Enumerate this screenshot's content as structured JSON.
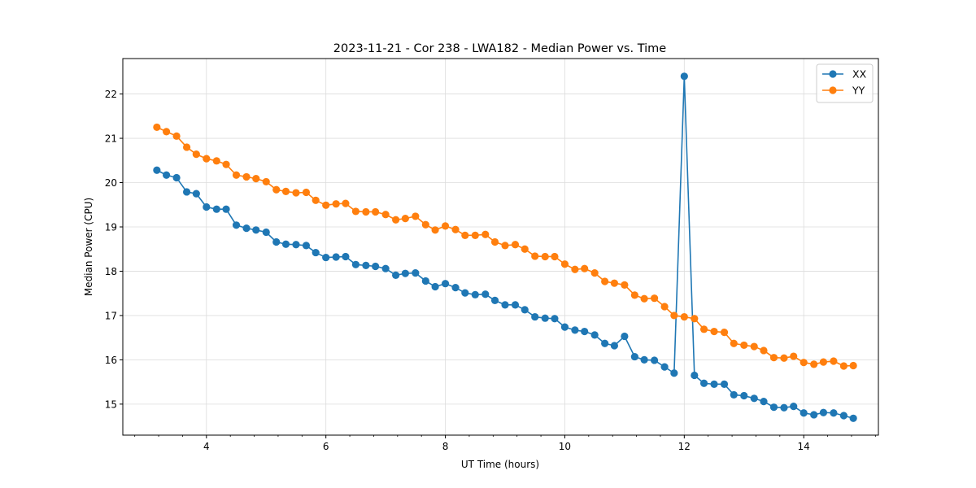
{
  "chart_data": {
    "type": "line",
    "title": "2023-11-21 - Cor 238 - LWA182 - Median Power vs. Time",
    "xlabel": "UT Time (hours)",
    "ylabel": "Median Power (CPU)",
    "xlim": [
      2.6,
      15.25
    ],
    "ylim": [
      14.3,
      22.8
    ],
    "xticks": [
      4,
      6,
      8,
      10,
      12,
      14
    ],
    "yticks": [
      15,
      16,
      17,
      18,
      19,
      20,
      21,
      22
    ],
    "grid": true,
    "legend_position": "top-right",
    "x": [
      3.17,
      3.33,
      3.5,
      3.67,
      3.83,
      4.0,
      4.17,
      4.33,
      4.5,
      4.67,
      4.83,
      5.0,
      5.17,
      5.33,
      5.5,
      5.67,
      5.83,
      6.0,
      6.17,
      6.33,
      6.5,
      6.67,
      6.83,
      7.0,
      7.17,
      7.33,
      7.5,
      7.67,
      7.83,
      8.0,
      8.17,
      8.33,
      8.5,
      8.67,
      8.83,
      9.0,
      9.17,
      9.33,
      9.5,
      9.67,
      9.83,
      10.0,
      10.17,
      10.33,
      10.5,
      10.67,
      10.83,
      11.0,
      11.17,
      11.33,
      11.5,
      11.67,
      11.83,
      12.0,
      12.17,
      12.33,
      12.5,
      12.67,
      12.83,
      13.0,
      13.17,
      13.33,
      13.5,
      13.67,
      13.83,
      14.0,
      14.17,
      14.33,
      14.5,
      14.67,
      14.83
    ],
    "series": [
      {
        "name": "XX",
        "color": "#1f77b4",
        "values": [
          20.28,
          20.17,
          20.11,
          19.79,
          19.75,
          19.45,
          19.4,
          19.4,
          19.04,
          18.97,
          18.93,
          18.88,
          18.66,
          18.61,
          18.6,
          18.58,
          18.42,
          18.31,
          18.32,
          18.33,
          18.15,
          18.13,
          18.11,
          18.06,
          17.91,
          17.95,
          17.96,
          17.78,
          17.65,
          17.72,
          17.63,
          17.51,
          17.47,
          17.48,
          17.34,
          17.24,
          17.24,
          17.13,
          16.97,
          16.94,
          16.93,
          16.74,
          16.67,
          16.64,
          16.56,
          16.37,
          16.32,
          16.53,
          16.07,
          16.0,
          15.99,
          15.84,
          15.7,
          22.4,
          15.65,
          15.47,
          15.45,
          15.45,
          15.21,
          15.19,
          15.13,
          15.06,
          14.93,
          14.92,
          14.95,
          14.8,
          14.76,
          14.81,
          14.8,
          14.74,
          14.68
        ]
      },
      {
        "name": "YY",
        "color": "#ff7f0e",
        "values": [
          21.25,
          21.15,
          21.05,
          20.8,
          20.64,
          20.54,
          20.49,
          20.41,
          20.17,
          20.13,
          20.09,
          20.02,
          19.84,
          19.8,
          19.77,
          19.78,
          19.6,
          19.49,
          19.52,
          19.53,
          19.35,
          19.34,
          19.34,
          19.28,
          19.16,
          19.19,
          19.24,
          19.05,
          18.93,
          19.02,
          18.94,
          18.81,
          18.81,
          18.83,
          18.66,
          18.58,
          18.6,
          18.5,
          18.34,
          18.33,
          18.33,
          18.16,
          18.04,
          18.06,
          17.96,
          17.77,
          17.73,
          17.69,
          17.46,
          17.38,
          17.39,
          17.2,
          17.0,
          16.97,
          16.93,
          16.69,
          16.64,
          16.62,
          16.37,
          16.33,
          16.3,
          16.21,
          16.05,
          16.04,
          16.08,
          15.94,
          15.9,
          15.95,
          15.97,
          15.86,
          15.87
        ]
      }
    ]
  }
}
